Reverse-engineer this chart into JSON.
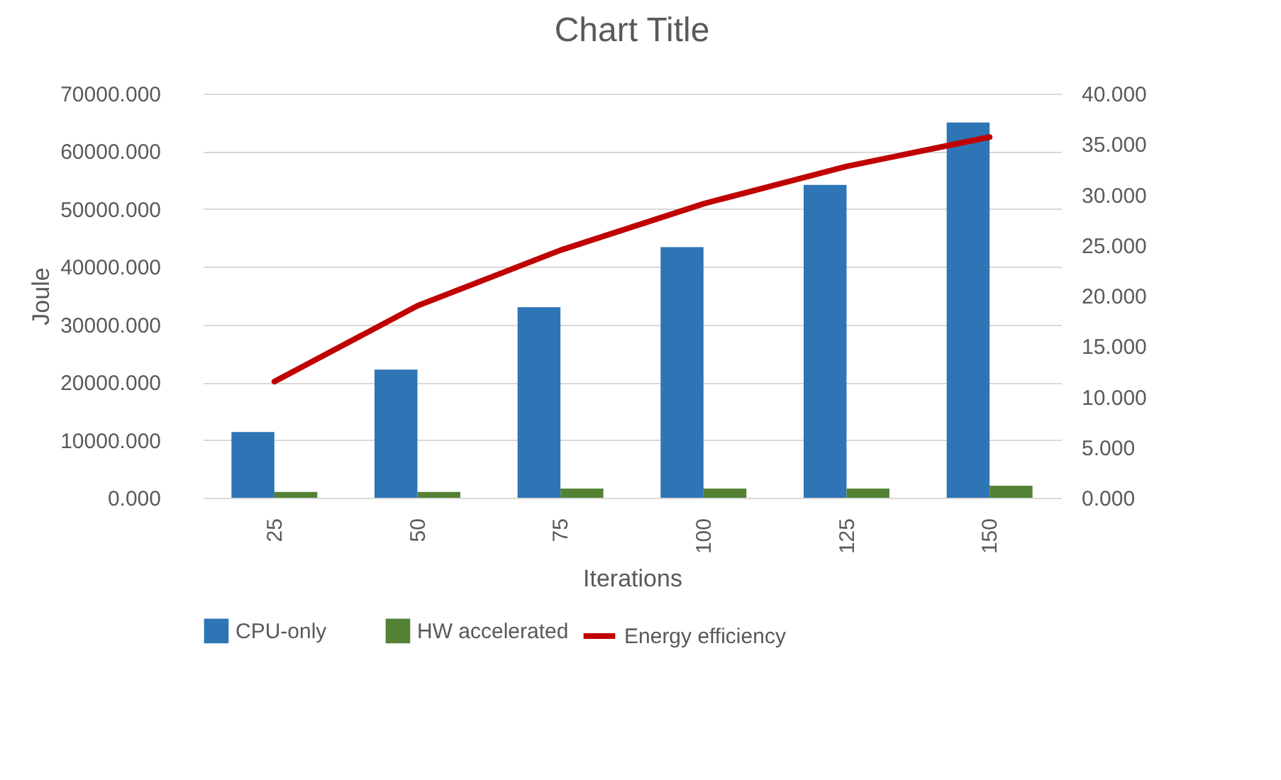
{
  "chart_data": {
    "type": "bar",
    "title": "Chart Title",
    "xlabel": "Iterations",
    "ylabel": "Joule",
    "categories": [
      "25",
      "50",
      "75",
      "100",
      "125",
      "150"
    ],
    "series": [
      {
        "name": "CPU-only",
        "color": "#2e75b6",
        "values": [
          11400,
          22200,
          33000,
          43400,
          54200,
          65000
        ]
      },
      {
        "name": "HW accelerated",
        "color": "#548235",
        "values": [
          1000,
          1000,
          1600,
          1600,
          1600,
          2100
        ]
      },
      {
        "name": "Energy efficiency",
        "type": "line",
        "axis": "y2",
        "color": "#c00000",
        "values": [
          11.5,
          19.0,
          24.5,
          29.1,
          32.8,
          35.7
        ]
      }
    ],
    "ylim": [
      0,
      70000
    ],
    "yticks": [
      {
        "value": 0,
        "label": "0.000"
      },
      {
        "value": 10000,
        "label": "10000.000"
      },
      {
        "value": 20000,
        "label": "20000.000"
      },
      {
        "value": 30000,
        "label": "30000.000"
      },
      {
        "value": 40000,
        "label": "40000.000"
      },
      {
        "value": 50000,
        "label": "50000.000"
      },
      {
        "value": 60000,
        "label": "60000.000"
      },
      {
        "value": 70000,
        "label": "70000.000"
      }
    ],
    "y2lim": [
      0,
      40
    ],
    "y2ticks": [
      {
        "value": 0,
        "label": "0.000"
      },
      {
        "value": 5,
        "label": "5.000"
      },
      {
        "value": 10,
        "label": "10.000"
      },
      {
        "value": 15,
        "label": "15.000"
      },
      {
        "value": 20,
        "label": "20.000"
      },
      {
        "value": 25,
        "label": "25.000"
      },
      {
        "value": 30,
        "label": "30.000"
      },
      {
        "value": 35,
        "label": "35.000"
      },
      {
        "value": 40,
        "label": "40.000"
      }
    ],
    "grid": "y",
    "legend": "bottom",
    "marker": "none",
    "line_style": "solid"
  }
}
